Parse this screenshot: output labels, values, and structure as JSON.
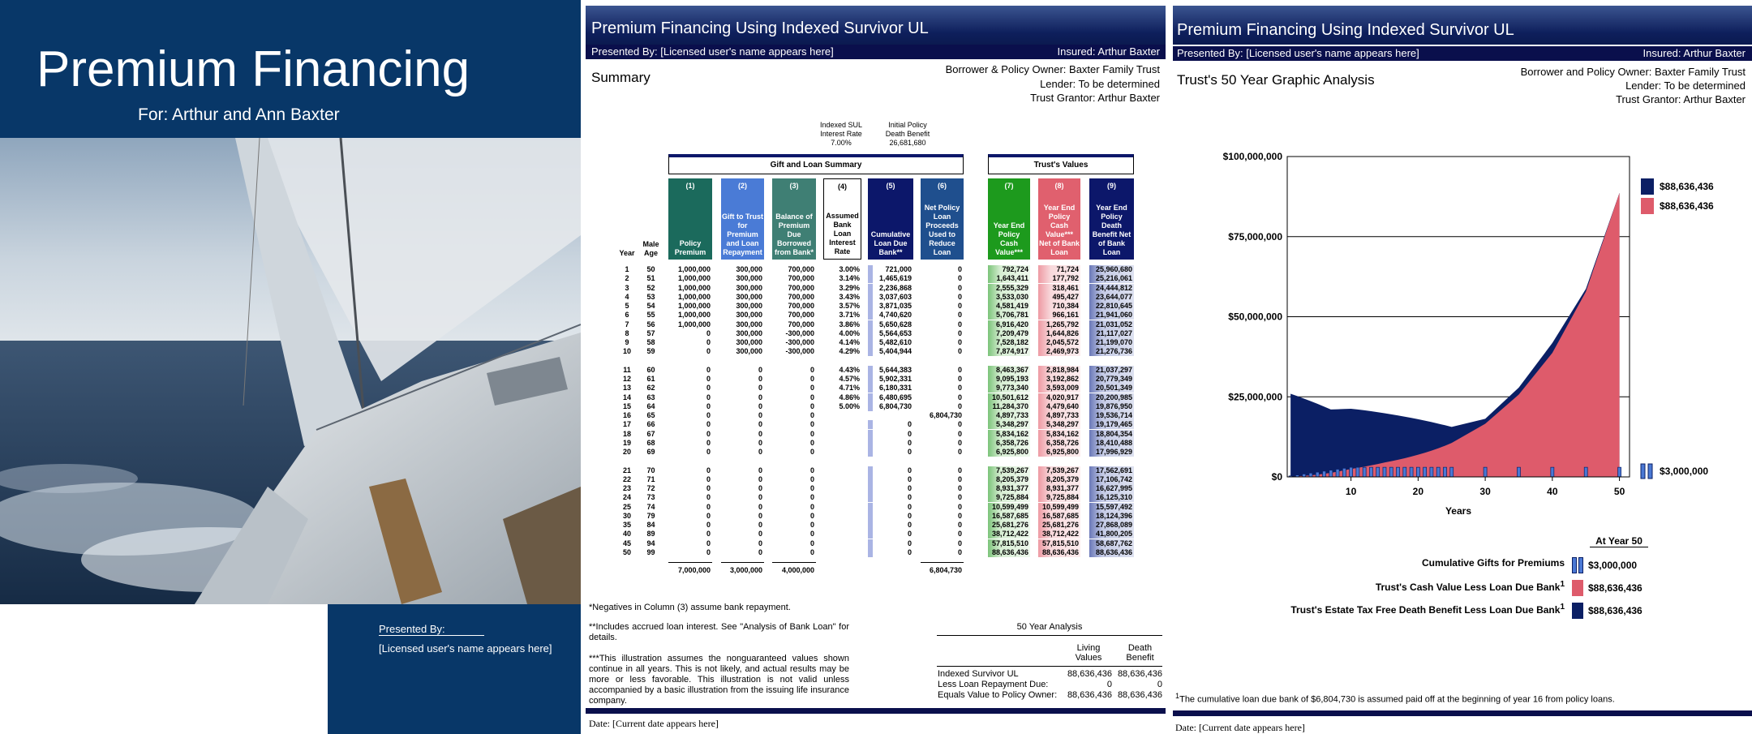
{
  "cover": {
    "title": "Premium Financing",
    "subtitle": "For: Arthur and Ann Baxter",
    "presented_by": "Presented By:",
    "presenter": "[Licensed user's name appears here]"
  },
  "summary_page": {
    "header": {
      "title": "Premium Financing Using Indexed Survivor UL",
      "presented_by": "Presented By: [Licensed user's name appears here]",
      "insured": "Insured: Arthur Baxter"
    },
    "heading": "Summary",
    "parties": [
      "Borrower & Policy Owner: Baxter Family Trust",
      "Lender: To be determined",
      "Trust Grantor: Arthur Baxter"
    ],
    "assumptions": [
      {
        "label": "Indexed SUL Interest Rate",
        "value": "7.00%"
      },
      {
        "label": "Initial Policy Death Benefit",
        "value": "26,681,680"
      }
    ],
    "groups": [
      "Gift and Loan Summary",
      "Trust's Values"
    ],
    "table": {
      "columns": [
        "Year",
        "Male Age",
        {
          "number": "(1)",
          "label": "Policy Premium"
        },
        {
          "number": "(2)",
          "label": "Gift to Trust for Premium and Loan Repayment"
        },
        {
          "number": "(3)",
          "label": "Balance of Premium Due Borrowed from Bank*"
        },
        {
          "number": "(4)",
          "label": "Assumed Bank Loan Interest Rate"
        },
        {
          "number": "(5)",
          "label": "Cumulative Loan Due Bank**"
        },
        {
          "number": "(6)",
          "label": "Net Policy Loan Proceeds Used to Reduce Loan"
        },
        {
          "number": "(7)",
          "label": "Year End Policy Cash Value***"
        },
        {
          "number": "(8)",
          "label": "Year End Policy Cash Value*** Net of Bank Loan"
        },
        {
          "number": "(9)",
          "label": "Year End Policy Death Benefit Net of Bank Loan"
        }
      ],
      "rows": [
        [
          "1",
          "50",
          "1,000,000",
          "300,000",
          "700,000",
          "3.00%",
          "721,000",
          "0",
          "792,724",
          "71,724",
          "25,960,680"
        ],
        [
          "2",
          "51",
          "1,000,000",
          "300,000",
          "700,000",
          "3.14%",
          "1,465,619",
          "0",
          "1,643,411",
          "177,792",
          "25,216,061"
        ],
        [
          "3",
          "52",
          "1,000,000",
          "300,000",
          "700,000",
          "3.29%",
          "2,236,868",
          "0",
          "2,555,329",
          "318,461",
          "24,444,812"
        ],
        [
          "4",
          "53",
          "1,000,000",
          "300,000",
          "700,000",
          "3.43%",
          "3,037,603",
          "0",
          "3,533,030",
          "495,427",
          "23,644,077"
        ],
        [
          "5",
          "54",
          "1,000,000",
          "300,000",
          "700,000",
          "3.57%",
          "3,871,035",
          "0",
          "4,581,419",
          "710,384",
          "22,810,645"
        ],
        [
          "6",
          "55",
          "1,000,000",
          "300,000",
          "700,000",
          "3.71%",
          "4,740,620",
          "0",
          "5,706,781",
          "966,161",
          "21,941,060"
        ],
        [
          "7",
          "56",
          "1,000,000",
          "300,000",
          "700,000",
          "3.86%",
          "5,650,628",
          "0",
          "6,916,420",
          "1,265,792",
          "21,031,052"
        ],
        [
          "8",
          "57",
          "0",
          "300,000",
          "-300,000",
          "4.00%",
          "5,564,653",
          "0",
          "7,209,479",
          "1,644,826",
          "21,117,027"
        ],
        [
          "9",
          "58",
          "0",
          "300,000",
          "-300,000",
          "4.14%",
          "5,482,610",
          "0",
          "7,528,182",
          "2,045,572",
          "21,199,070"
        ],
        [
          "10",
          "59",
          "0",
          "300,000",
          "-300,000",
          "4.29%",
          "5,404,944",
          "0",
          "7,874,917",
          "2,469,973",
          "21,276,736"
        ],
        [
          "11",
          "60",
          "0",
          "0",
          "0",
          "4.43%",
          "5,644,383",
          "0",
          "8,463,367",
          "2,818,984",
          "21,037,297"
        ],
        [
          "12",
          "61",
          "0",
          "0",
          "0",
          "4.57%",
          "5,902,331",
          "0",
          "9,095,193",
          "3,192,862",
          "20,779,349"
        ],
        [
          "13",
          "62",
          "0",
          "0",
          "0",
          "4.71%",
          "6,180,331",
          "0",
          "9,773,340",
          "3,593,009",
          "20,501,349"
        ],
        [
          "14",
          "63",
          "0",
          "0",
          "0",
          "4.86%",
          "6,480,695",
          "0",
          "10,501,612",
          "4,020,917",
          "20,200,985"
        ],
        [
          "15",
          "64",
          "0",
          "0",
          "0",
          "5.00%",
          "6,804,730",
          "0",
          "11,284,370",
          "4,479,640",
          "19,876,950"
        ],
        [
          "16",
          "65",
          "0",
          "0",
          "0",
          null,
          null,
          "6,804,730",
          "4,897,733",
          "4,897,733",
          "19,536,714"
        ],
        [
          "17",
          "66",
          "0",
          "0",
          "0",
          null,
          "0",
          "0",
          "5,348,297",
          "5,348,297",
          "19,179,465"
        ],
        [
          "18",
          "67",
          "0",
          "0",
          "0",
          null,
          "0",
          "0",
          "5,834,162",
          "5,834,162",
          "18,804,354"
        ],
        [
          "19",
          "68",
          "0",
          "0",
          "0",
          null,
          "0",
          "0",
          "6,358,726",
          "6,358,726",
          "18,410,488"
        ],
        [
          "20",
          "69",
          "0",
          "0",
          "0",
          null,
          "0",
          "0",
          "6,925,800",
          "6,925,800",
          "17,996,929"
        ],
        [
          "21",
          "70",
          "0",
          "0",
          "0",
          null,
          "0",
          "0",
          "7,539,267",
          "7,539,267",
          "17,562,691"
        ],
        [
          "22",
          "71",
          "0",
          "0",
          "0",
          null,
          "0",
          "0",
          "8,205,379",
          "8,205,379",
          "17,106,742"
        ],
        [
          "23",
          "72",
          "0",
          "0",
          "0",
          null,
          "0",
          "0",
          "8,931,377",
          "8,931,377",
          "16,627,995"
        ],
        [
          "24",
          "73",
          "0",
          "0",
          "0",
          null,
          "0",
          "0",
          "9,725,884",
          "9,725,884",
          "16,125,310"
        ],
        [
          "25",
          "74",
          "0",
          "0",
          "0",
          null,
          "0",
          "0",
          "10,599,499",
          "10,599,499",
          "15,597,492"
        ],
        [
          "30",
          "79",
          "0",
          "0",
          "0",
          null,
          "0",
          "0",
          "16,587,685",
          "16,587,685",
          "18,124,396"
        ],
        [
          "35",
          "84",
          "0",
          "0",
          "0",
          null,
          "0",
          "0",
          "25,681,276",
          "25,681,276",
          "27,868,089"
        ],
        [
          "40",
          "89",
          "0",
          "0",
          "0",
          null,
          "0",
          "0",
          "38,712,422",
          "38,712,422",
          "41,800,205"
        ],
        [
          "45",
          "94",
          "0",
          "0",
          "0",
          null,
          "0",
          "0",
          "57,815,510",
          "57,815,510",
          "58,687,762"
        ],
        [
          "50",
          "99",
          "0",
          "0",
          "0",
          null,
          "0",
          "0",
          "88,636,436",
          "88,636,436",
          "88,636,436"
        ]
      ],
      "totals": [
        null,
        null,
        "7,000,000",
        "3,000,000",
        "4,000,000",
        null,
        null,
        "6,804,730",
        null,
        null,
        null
      ]
    },
    "footnotes": [
      "*Negatives in Column (3) assume bank repayment.",
      "**Includes accrued loan interest. See \"Analysis of Bank Loan\" for details.",
      "***This illustration assumes the nonguaranteed values shown continue in all years. This is not likely, and actual results may be more or less favorable. This illustration is not valid unless accompanied by a basic illustration from the issuing life insurance company."
    ],
    "analysis": {
      "title": "50 Year Analysis",
      "headers": [
        "Living Values",
        "Death Benefit"
      ],
      "rows": [
        [
          "Indexed Survivor UL",
          "88,636,436",
          "88,636,436"
        ],
        [
          "Less Loan Repayment Due:",
          "0",
          "0"
        ],
        [
          "Equals Value to Policy Owner:",
          "88,636,436",
          "88,636,436"
        ]
      ]
    },
    "date": "Date: [Current date appears here]"
  },
  "graphic_page": {
    "header": {
      "title": "Premium Financing Using Indexed Survivor UL",
      "presented_by": "Presented By: [Licensed user's name appears here]",
      "insured": "Insured: Arthur Baxter"
    },
    "heading": "Trust's 50 Year Graphic Analysis",
    "parties": [
      "Borrower and Policy Owner: Baxter Family Trust",
      "Lender: To be determined",
      "Trust Grantor: Arthur Baxter"
    ],
    "summary": {
      "title": "At Year 50",
      "rows": [
        {
          "label": "Cumulative Gifts for Premiums",
          "value": "$3,000,000"
        },
        {
          "label": "Trust's Cash Value Less Loan Due Bank",
          "mark": "1",
          "value": "$88,636,436"
        },
        {
          "label": "Trust's Estate Tax Free Death Benefit Less Loan Due Bank",
          "mark": "1",
          "value": "$88,636,436"
        }
      ]
    },
    "footnote": {
      "mark": "1",
      "text": "The cumulative loan due bank of $6,804,730 is assumed paid off at the beginning of year 16 from policy loans."
    },
    "date": "Date: [Current date appears here]"
  },
  "chart_data": {
    "type": "area",
    "xlabel": "Years",
    "x": [
      1,
      2,
      3,
      4,
      5,
      6,
      7,
      8,
      9,
      10,
      11,
      12,
      13,
      14,
      15,
      16,
      17,
      18,
      19,
      20,
      21,
      22,
      23,
      24,
      25,
      30,
      35,
      40,
      45,
      50
    ],
    "xlim": [
      0.5,
      51.5
    ],
    "xticks": [
      10,
      20,
      30,
      40,
      50
    ],
    "ylim": [
      0,
      100000000
    ],
    "yticks": [
      {
        "value": 0,
        "label": "$0"
      },
      {
        "value": 25000000,
        "label": "$25,000,000"
      },
      {
        "value": 50000000,
        "label": "$50,000,000"
      },
      {
        "value": 75000000,
        "label": "$75,000,000"
      },
      {
        "value": 100000000,
        "label": "$100,000,000"
      }
    ],
    "grid": true,
    "series": [
      {
        "name": "$88,636,436",
        "color": "#0b1f64",
        "kind": "area",
        "values": [
          25960680,
          25216061,
          24444812,
          23644077,
          22810645,
          21941060,
          21031052,
          21117027,
          21199070,
          21276736,
          21037297,
          20779349,
          20501349,
          20200985,
          19876950,
          19536714,
          19179465,
          18804354,
          18410488,
          17996929,
          17562691,
          17106742,
          16627995,
          16125310,
          15597492,
          18124396,
          27868089,
          41800205,
          58687762,
          88636436
        ]
      },
      {
        "name": "$88,636,436",
        "color": "#de5b6b",
        "kind": "area",
        "values": [
          71724,
          177792,
          318461,
          495427,
          710384,
          966161,
          1265792,
          1644826,
          2045572,
          2469973,
          2818984,
          3192862,
          3593009,
          4020917,
          4479640,
          4897733,
          5348297,
          5834162,
          6358726,
          6925800,
          7539267,
          8205379,
          8931377,
          9725884,
          10599499,
          16587685,
          25681276,
          38712422,
          57815510,
          88636436
        ]
      },
      {
        "name": "$3,000,000",
        "color": "#4a78d4",
        "kind": "bar",
        "values": [
          300000,
          600000,
          900000,
          1200000,
          1500000,
          1800000,
          2100000,
          2400000,
          2700000,
          3000000,
          3000000,
          3000000,
          3000000,
          3000000,
          3000000,
          3000000,
          3000000,
          3000000,
          3000000,
          3000000,
          3000000,
          3000000,
          3000000,
          3000000,
          3000000,
          3000000,
          3000000,
          3000000,
          3000000,
          3000000
        ]
      }
    ]
  }
}
